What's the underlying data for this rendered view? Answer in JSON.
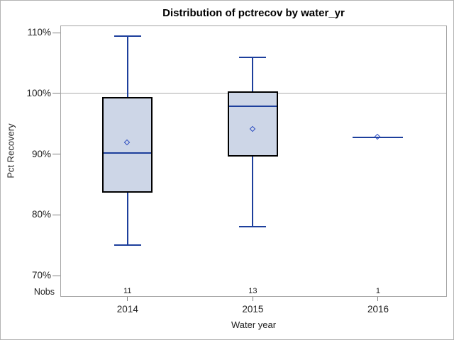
{
  "chart_data": {
    "type": "boxplot",
    "title": "Distribution of pctrecov by water_yr",
    "xlabel": "Water year",
    "ylabel": "Pct Recovery",
    "nobs_label": "Nobs",
    "ylim": [
      66.5,
      111.2
    ],
    "y_ticks": [
      {
        "value": 110,
        "label": "110%"
      },
      {
        "value": 100,
        "label": "100%"
      },
      {
        "value": 90,
        "label": "90%"
      },
      {
        "value": 80,
        "label": "80%"
      },
      {
        "value": 70,
        "label": "70%"
      }
    ],
    "reference_line": 100,
    "grid": "single horizontal reference line at 100%",
    "legend": "none",
    "series": [
      {
        "category": "2014",
        "nobs": 11,
        "min": 75.0,
        "q1": 83.7,
        "median": 90.2,
        "mean": 91.9,
        "q3": 99.4,
        "max": 109.4
      },
      {
        "category": "2015",
        "nobs": 13,
        "min": 78.0,
        "q1": 89.6,
        "median": 97.9,
        "mean": 94.1,
        "q3": 100.3,
        "max": 106.0
      },
      {
        "category": "2016",
        "nobs": 1,
        "min": 92.8,
        "q1": 92.8,
        "median": 92.8,
        "mean": 92.8,
        "q3": 92.8,
        "max": 92.8
      }
    ],
    "colors": {
      "box_fill": "#cdd6e7",
      "box_border": "#000000",
      "whisker": "#1d3f9c",
      "median": "#1d3f9c",
      "mean_marker": "#2a4bc0",
      "reference_line": "#ababab",
      "tick_mark": "#808080",
      "frame": "#a3a3a3",
      "text": "#222222",
      "title_text": "#000000"
    }
  }
}
